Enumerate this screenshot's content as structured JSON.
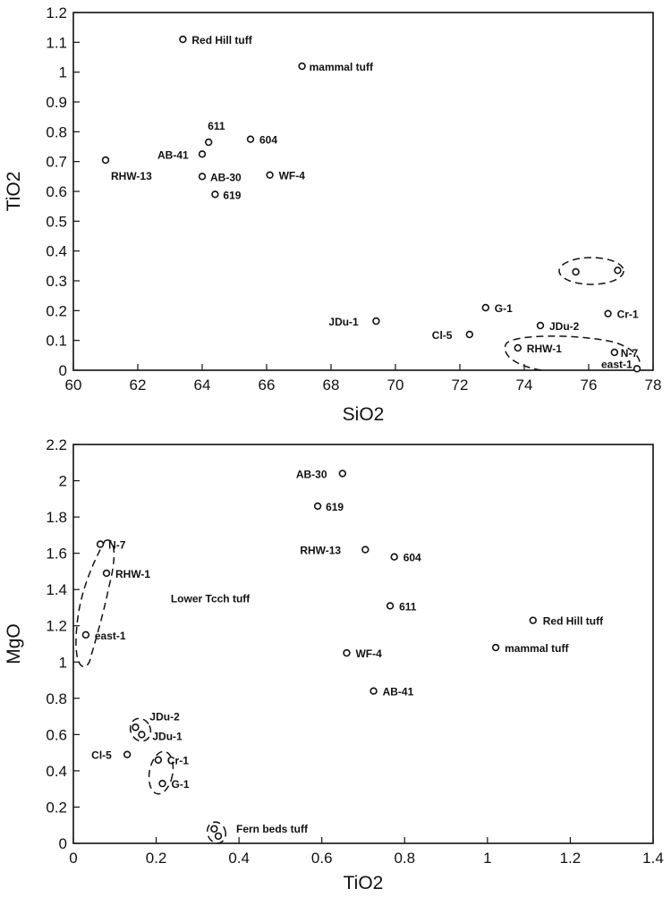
{
  "chart_data": [
    {
      "type": "scatter",
      "title": "",
      "xlabel": "SiO2",
      "ylabel": "TiO2",
      "xlim": [
        60,
        78
      ],
      "ylim": [
        0,
        1.2
      ],
      "xticks": [
        "60",
        "62",
        "64",
        "66",
        "68",
        "70",
        "72",
        "74",
        "76",
        "78"
      ],
      "yticks": [
        "0",
        "0.1",
        "0.2",
        "0.3",
        "0.4",
        "0.5",
        "0.6",
        "0.7",
        "0.8",
        "0.9",
        "1",
        "1.1",
        "1.2"
      ],
      "grid": false,
      "legend": "none",
      "points": [
        {
          "label": "Red Hill tuff",
          "x": 63.4,
          "y": 1.11
        },
        {
          "label": "mammal tuff",
          "x": 67.1,
          "y": 1.02
        },
        {
          "label": "611",
          "x": 64.2,
          "y": 0.765
        },
        {
          "label": "604",
          "x": 65.5,
          "y": 0.775
        },
        {
          "label": "AB-41",
          "x": 64.0,
          "y": 0.725
        },
        {
          "label": "RHW-13",
          "x": 61.0,
          "y": 0.705
        },
        {
          "label": "AB-30",
          "x": 64.0,
          "y": 0.65
        },
        {
          "label": "WF-4",
          "x": 66.1,
          "y": 0.655
        },
        {
          "label": "619",
          "x": 64.4,
          "y": 0.59
        },
        {
          "label": "",
          "x": 75.6,
          "y": 0.33
        },
        {
          "label": "",
          "x": 76.9,
          "y": 0.335
        },
        {
          "label": "G-1",
          "x": 72.8,
          "y": 0.21
        },
        {
          "label": "Cr-1",
          "x": 76.6,
          "y": 0.19
        },
        {
          "label": "JDu-1",
          "x": 69.4,
          "y": 0.165
        },
        {
          "label": "JDu-2",
          "x": 74.5,
          "y": 0.15
        },
        {
          "label": "Cl-5",
          "x": 72.3,
          "y": 0.12
        },
        {
          "label": "RHW-1",
          "x": 73.8,
          "y": 0.075
        },
        {
          "label": "N-7",
          "x": 76.8,
          "y": 0.06
        },
        {
          "label": "east-1",
          "x": 77.5,
          "y": 0.005
        }
      ],
      "annotations": []
    },
    {
      "type": "scatter",
      "title": "",
      "xlabel": "TiO2",
      "ylabel": "MgO",
      "xlim": [
        0,
        1.4
      ],
      "ylim": [
        0,
        2.2
      ],
      "xticks": [
        "0",
        "0.2",
        "0.4",
        "0.6",
        "0.8",
        "1",
        "1.2",
        "1.4"
      ],
      "yticks": [
        "0",
        "0.2",
        "0.4",
        "0.6",
        "0.8",
        "1",
        "1.2",
        "1.4",
        "1.6",
        "1.8",
        "2",
        "2.2"
      ],
      "grid": false,
      "legend": "none",
      "points": [
        {
          "label": "AB-30",
          "x": 0.65,
          "y": 2.04
        },
        {
          "label": "619",
          "x": 0.59,
          "y": 1.86
        },
        {
          "label": "N-7",
          "x": 0.065,
          "y": 1.65
        },
        {
          "label": "RHW-13",
          "x": 0.705,
          "y": 1.62
        },
        {
          "label": "604",
          "x": 0.775,
          "y": 1.58
        },
        {
          "label": "RHW-1",
          "x": 0.08,
          "y": 1.49
        },
        {
          "label": "611",
          "x": 0.765,
          "y": 1.31
        },
        {
          "label": "Red Hill tuff",
          "x": 1.11,
          "y": 1.23
        },
        {
          "label": "east-1",
          "x": 0.03,
          "y": 1.15
        },
        {
          "label": "mammal tuff",
          "x": 1.02,
          "y": 1.08
        },
        {
          "label": "WF-4",
          "x": 0.66,
          "y": 1.05
        },
        {
          "label": "AB-41",
          "x": 0.725,
          "y": 0.84
        },
        {
          "label": "JDu-2",
          "x": 0.15,
          "y": 0.64
        },
        {
          "label": "JDu-1",
          "x": 0.165,
          "y": 0.6
        },
        {
          "label": "Cl-5",
          "x": 0.13,
          "y": 0.49
        },
        {
          "label": "Cr-1",
          "x": 0.205,
          "y": 0.46
        },
        {
          "label": "G-1",
          "x": 0.215,
          "y": 0.33
        },
        {
          "label": "",
          "x": 0.34,
          "y": 0.08
        },
        {
          "label": "Fern beds tuff",
          "x": 0.35,
          "y": 0.04
        }
      ],
      "annotations": [
        {
          "text": "Lower Tcch tuff",
          "x": 0.3,
          "y": 1.35
        }
      ]
    }
  ]
}
